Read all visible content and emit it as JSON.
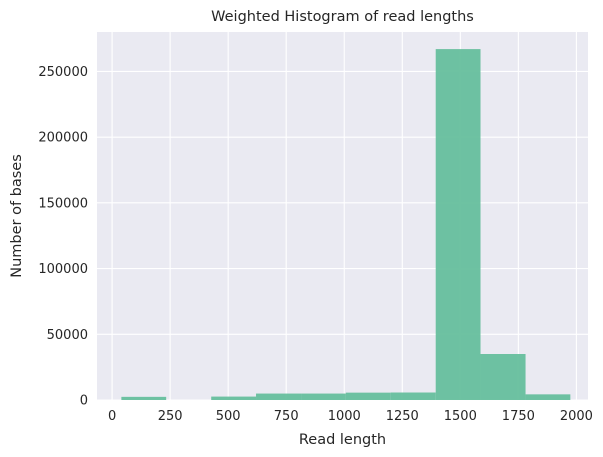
{
  "chart_data": {
    "type": "bar",
    "title": "Weighted Histogram of read lengths",
    "xlabel": "Read length",
    "ylabel": "Number of bases",
    "xlim": [
      -65,
      2050
    ],
    "ylim": [
      0,
      280000
    ],
    "x_ticks": [
      0,
      250,
      500,
      750,
      1000,
      1250,
      1500,
      1750,
      2000
    ],
    "y_ticks": [
      0,
      50000,
      100000,
      150000,
      200000,
      250000
    ],
    "grid": true,
    "bins": [
      {
        "x0": 40,
        "x1": 233,
        "value": 2400
      },
      {
        "x0": 233,
        "x1": 427,
        "value": 0
      },
      {
        "x0": 427,
        "x1": 620,
        "value": 2600
      },
      {
        "x0": 620,
        "x1": 814,
        "value": 4900
      },
      {
        "x0": 814,
        "x1": 1007,
        "value": 4900
      },
      {
        "x0": 1007,
        "x1": 1200,
        "value": 5600
      },
      {
        "x0": 1200,
        "x1": 1394,
        "value": 5700
      },
      {
        "x0": 1394,
        "x1": 1587,
        "value": 267000
      },
      {
        "x0": 1587,
        "x1": 1781,
        "value": 35000
      },
      {
        "x0": 1781,
        "x1": 1974,
        "value": 4300
      }
    ],
    "colors": {
      "bar": "#66bf9d",
      "background": "#eaeaf2",
      "grid": "#ffffff",
      "text": "#262626"
    }
  }
}
